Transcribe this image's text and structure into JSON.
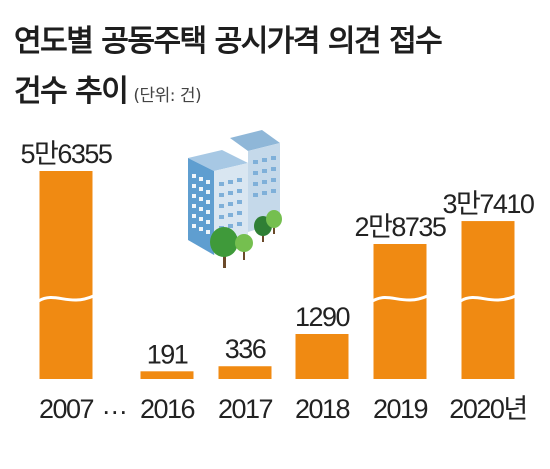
{
  "title": "연도별 공동주택 공시가격 의견 접수",
  "title_line2": "건수 추이",
  "unit_label": "(단위: 건)",
  "accent_color": "#f08a12",
  "gap_marker": "…",
  "chart_data": {
    "type": "bar",
    "title": "연도별 공동주택 공시가격 의견 접수 건수 추이",
    "unit": "건",
    "categories": [
      "2007",
      "2016",
      "2017",
      "2018",
      "2019",
      "2020년"
    ],
    "values": [
      56355,
      191,
      336,
      1290,
      28735,
      37410
    ],
    "labels": [
      "5만6355",
      "191",
      "336",
      "1290",
      "2만8735",
      "3만7410"
    ],
    "axis_break": true,
    "grid": false,
    "legend": "none"
  },
  "illustration": "apartment-building-with-trees-icon"
}
